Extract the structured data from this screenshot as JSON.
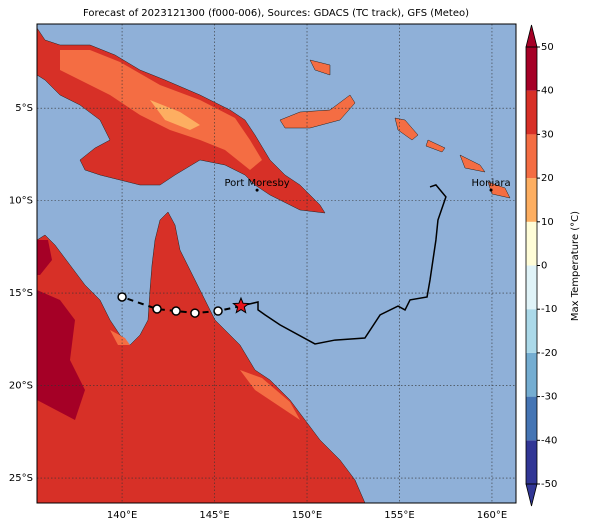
{
  "chart_data": {
    "type": "map",
    "title": "Forecast of 2023121300 (f000-006), Sources: GDACS (TC track), GFS (Meteo)",
    "xlim": [
      135.4,
      161.3
    ],
    "ylim": [
      -26.35,
      -0.45
    ],
    "xticks": [
      {
        "value": 140,
        "label": "140°E"
      },
      {
        "value": 145,
        "label": "145°E"
      },
      {
        "value": 150,
        "label": "150°E"
      },
      {
        "value": 155,
        "label": "155°E"
      },
      {
        "value": 160,
        "label": "160°E"
      }
    ],
    "yticks": [
      {
        "value": -5,
        "label": "5°S"
      },
      {
        "value": -10,
        "label": "10°S"
      },
      {
        "value": -15,
        "label": "15°S"
      },
      {
        "value": -20,
        "label": "20°S"
      },
      {
        "value": -25,
        "label": "25°S"
      }
    ],
    "grid": true,
    "places": [
      {
        "name": "Port Moresby",
        "lon": 147.3,
        "lat": -9.43
      },
      {
        "name": "Honiara",
        "lon": 159.95,
        "lat": -9.43
      }
    ],
    "track": {
      "color": "#000000",
      "lon": [
        156.65,
        156.97,
        157.51,
        157.08,
        156.97,
        156.81,
        156.65,
        156.49,
        155.57,
        155.3,
        154.92,
        153.95,
        153.13,
        151.51,
        150.43,
        148.54,
        147.73,
        147.35,
        147.35,
        146.43
      ],
      "lat": [
        -9.26,
        -9.15,
        -9.8,
        -11.05,
        -12.13,
        -13.21,
        -14.29,
        -15.21,
        -15.37,
        -15.91,
        -15.7,
        -16.18,
        -17.43,
        -17.54,
        -17.75,
        -16.72,
        -16.18,
        -15.91,
        -15.48,
        -15.7
      ]
    },
    "forecast": {
      "color": "#000000",
      "lon": [
        146.43,
        145.19,
        143.94,
        142.92,
        141.89,
        140.0
      ],
      "lat": [
        -15.7,
        -15.97,
        -16.08,
        -15.97,
        -15.86,
        -15.21
      ]
    },
    "colorbar": {
      "label": "Max Temperature (°C)",
      "lim": [
        -50,
        50
      ],
      "ticks": [
        -50,
        -40,
        -30,
        -20,
        -10,
        0,
        10,
        20,
        30,
        40,
        50
      ],
      "levels": [
        -50,
        -40,
        -30,
        -20,
        -10,
        0,
        10,
        20,
        30,
        40,
        50
      ],
      "colors": [
        "#313695",
        "#4575b4",
        "#74add1",
        "#abd9e9",
        "#e0f3f8",
        "#fffdd8",
        "#fdae61",
        "#f46d43",
        "#d73027",
        "#a50026"
      ]
    }
  }
}
